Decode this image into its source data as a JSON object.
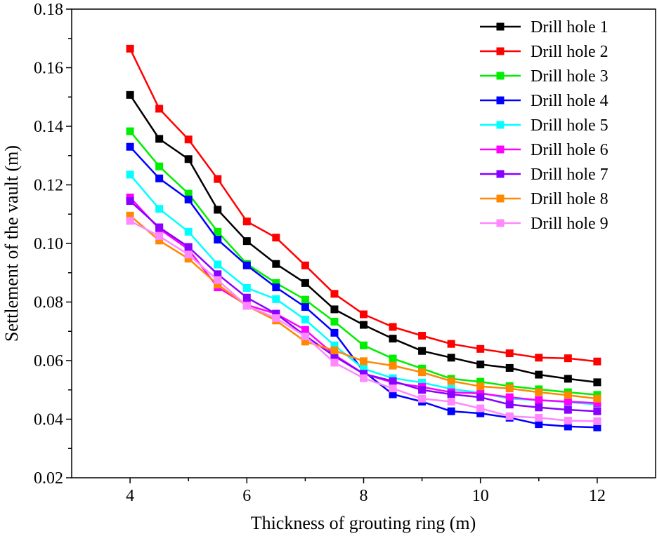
{
  "chart_data": {
    "type": "line",
    "title": "",
    "xlabel": "Thickness of grouting ring (m)",
    "ylabel": "Settlement of the vault (m)",
    "xlim": [
      3,
      13
    ],
    "ylim": [
      0.02,
      0.18
    ],
    "xticks": [
      4,
      6,
      8,
      10,
      12
    ],
    "xtick_labels": [
      "4",
      "6",
      "8",
      "10",
      "12"
    ],
    "yticks": [
      0.02,
      0.04,
      0.06,
      0.08,
      0.1,
      0.12,
      0.14,
      0.16,
      0.18
    ],
    "ytick_labels": [
      "0.02",
      "0.04",
      "0.06",
      "0.08",
      "0.10",
      "0.12",
      "0.14",
      "0.16",
      "0.18"
    ],
    "grid": false,
    "legend_position": "top-right",
    "x": [
      4,
      4.5,
      5,
      5.5,
      6,
      6.5,
      7,
      7.5,
      8,
      8.5,
      9,
      9.5,
      10,
      10.5,
      11,
      11.5,
      12
    ],
    "series": [
      {
        "name": "Drill hole 1",
        "color": "#000000",
        "values": [
          0.1507,
          0.1357,
          0.1288,
          0.1115,
          0.1008,
          0.093,
          0.0865,
          0.0775,
          0.0722,
          0.0675,
          0.0633,
          0.061,
          0.0587,
          0.0575,
          0.0552,
          0.0538,
          0.0526
        ]
      },
      {
        "name": "Drill hole 2",
        "color": "#ff0000",
        "values": [
          0.1665,
          0.146,
          0.1355,
          0.122,
          0.1075,
          0.102,
          0.0925,
          0.0828,
          0.0758,
          0.0715,
          0.0685,
          0.0657,
          0.064,
          0.0625,
          0.061,
          0.0608,
          0.0597
        ]
      },
      {
        "name": "Drill hole 3",
        "color": "#00ee00",
        "values": [
          0.1383,
          0.1263,
          0.117,
          0.104,
          0.093,
          0.0865,
          0.0808,
          0.0733,
          0.0652,
          0.0607,
          0.0573,
          0.0538,
          0.0528,
          0.0513,
          0.0502,
          0.0492,
          0.0483
        ]
      },
      {
        "name": "Drill hole 4",
        "color": "#0000ff",
        "values": [
          0.133,
          0.1222,
          0.115,
          0.1013,
          0.0925,
          0.085,
          0.0783,
          0.0695,
          0.0563,
          0.0485,
          0.046,
          0.0427,
          0.042,
          0.0405,
          0.0383,
          0.0375,
          0.0372
        ]
      },
      {
        "name": "Drill hole 5",
        "color": "#00ffff",
        "values": [
          0.1235,
          0.1118,
          0.104,
          0.0928,
          0.0848,
          0.081,
          0.074,
          0.0652,
          0.0572,
          0.054,
          0.0525,
          0.0503,
          0.049,
          0.047,
          0.0465,
          0.0458,
          0.045
        ]
      },
      {
        "name": "Drill hole 6",
        "color": "#ff00ff",
        "values": [
          0.1157,
          0.105,
          0.098,
          0.085,
          0.079,
          0.076,
          0.0705,
          0.062,
          0.0555,
          0.0525,
          0.051,
          0.0492,
          0.0488,
          0.0475,
          0.0465,
          0.046,
          0.0455
        ]
      },
      {
        "name": "Drill hole 7",
        "color": "#8800ff",
        "values": [
          0.1145,
          0.1055,
          0.0988,
          0.0895,
          0.0815,
          0.076,
          0.0685,
          0.0615,
          0.0555,
          0.053,
          0.05,
          0.0485,
          0.0475,
          0.045,
          0.044,
          0.0432,
          0.0427
        ]
      },
      {
        "name": "Drill hole 8",
        "color": "#ff8800",
        "values": [
          0.1095,
          0.101,
          0.0948,
          0.086,
          0.0787,
          0.0737,
          0.0665,
          0.0635,
          0.0598,
          0.0583,
          0.056,
          0.053,
          0.0512,
          0.0505,
          0.0492,
          0.0482,
          0.047
        ]
      },
      {
        "name": "Drill hole 9",
        "color": "#ff88ff",
        "values": [
          0.1077,
          0.1025,
          0.0962,
          0.0875,
          0.0787,
          0.0745,
          0.0683,
          0.0593,
          0.054,
          0.0505,
          0.047,
          0.046,
          0.0437,
          0.041,
          0.0405,
          0.0395,
          0.0393
        ]
      }
    ]
  }
}
